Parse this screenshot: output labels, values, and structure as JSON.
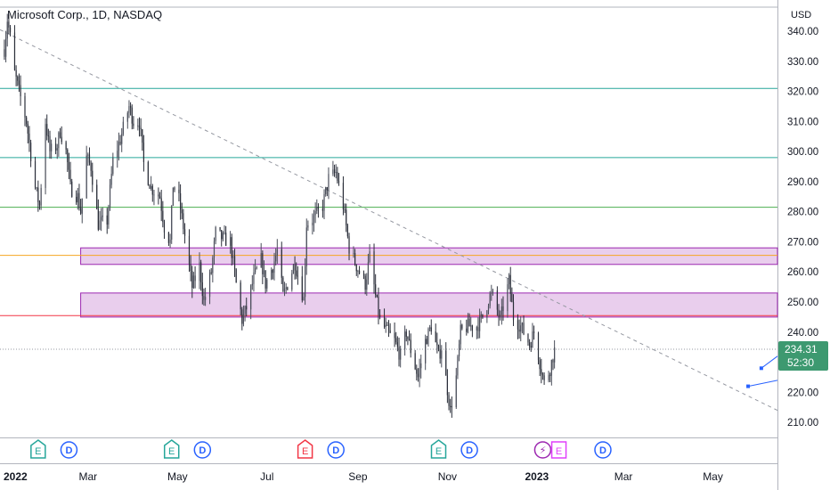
{
  "header": {
    "title": "Microsoft Corp., 1D, NASDAQ"
  },
  "colors": {
    "up": "#26a69a",
    "down": "#ef5350",
    "candle": "#4a4e5a",
    "teal_line": "#26a69a",
    "green_line": "#4caf50",
    "orange_line": "#f5a623",
    "red_line": "#f23645",
    "zone_fill": "#e1bee7",
    "zone_border": "#9c27b0",
    "trend": "#9598a1",
    "blue": "#2962ff",
    "price_badge": "#3d9970"
  },
  "chart_data": {
    "type": "candlestick",
    "title": "Microsoft Corp., 1D, NASDAQ",
    "currency": "USD",
    "ylim": [
      205,
      348
    ],
    "yticks": [
      "340.00",
      "330.00",
      "320.00",
      "310.00",
      "300.00",
      "290.00",
      "280.00",
      "270.00",
      "260.00",
      "250.00",
      "240.00",
      "230.00",
      "220.00",
      "210.00"
    ],
    "ytick_values": [
      340,
      330,
      320,
      310,
      300,
      290,
      280,
      270,
      260,
      250,
      240,
      230,
      220,
      210
    ],
    "xlabels": [
      "2022",
      "Mar",
      "May",
      "Jul",
      "Sep",
      "Nov",
      "2023",
      "Mar",
      "May"
    ],
    "xlabel_dates": [
      "2022-01-01",
      "2022-03-01",
      "2022-05-01",
      "2022-07-01",
      "2022-09-01",
      "2022-11-01",
      "2023-01-01",
      "2023-03-01",
      "2023-05-01"
    ],
    "xlim": [
      "2021-12-31",
      "2023-06-14"
    ],
    "current_price": "234.31",
    "countdown": "52:30",
    "horizontal_lines": [
      {
        "value": 321,
        "kind": "teal"
      },
      {
        "value": 298,
        "kind": "teal"
      },
      {
        "value": 281.5,
        "kind": "green"
      },
      {
        "value": 265.5,
        "kind": "orange"
      },
      {
        "value": 245.5,
        "kind": "red"
      }
    ],
    "zones": [
      {
        "from_date": "2022-02-24",
        "to_date": "2023-06-14",
        "top": 268,
        "bottom": 262.5
      },
      {
        "from_date": "2022-02-24",
        "to_date": "2023-06-14",
        "top": 253,
        "bottom": 245
      }
    ],
    "trendline": {
      "start_date": "2021-12-31",
      "start_value": 340.5,
      "end_date": "2023-06-14",
      "end_value": 214
    },
    "projection_segments": [
      {
        "from_date": "2023-05-25",
        "from_value": 222,
        "to_date": "2023-06-14",
        "to_value": 224
      },
      {
        "from_date": "2023-06-03",
        "from_value": 228,
        "to_date": "2023-06-14",
        "to_value": 232
      }
    ],
    "events": [
      {
        "date": "2022-01-26",
        "label": "E",
        "kind": "earnings-up"
      },
      {
        "date": "2022-02-16",
        "label": "D",
        "kind": "dividend"
      },
      {
        "date": "2022-04-27",
        "label": "E",
        "kind": "earnings-up"
      },
      {
        "date": "2022-05-18",
        "label": "D",
        "kind": "dividend"
      },
      {
        "date": "2022-07-27",
        "label": "E",
        "kind": "earnings-down"
      },
      {
        "date": "2022-08-17",
        "label": "D",
        "kind": "dividend"
      },
      {
        "date": "2022-10-26",
        "label": "E",
        "kind": "earnings-up"
      },
      {
        "date": "2022-11-16",
        "label": "D",
        "kind": "dividend"
      },
      {
        "date": "2023-01-05",
        "label": "⚡",
        "kind": "split"
      },
      {
        "date": "2023-01-16",
        "label": "E",
        "kind": "earnings-pending"
      },
      {
        "date": "2023-02-15",
        "label": "D",
        "kind": "dividend"
      }
    ],
    "price_path": [
      [
        "2022-01-03",
        334
      ],
      [
        "2022-01-05",
        344
      ],
      [
        "2022-01-07",
        338
      ],
      [
        "2022-01-10",
        326
      ],
      [
        "2022-01-13",
        320
      ],
      [
        "2022-01-18",
        310
      ],
      [
        "2022-01-21",
        299
      ],
      [
        "2022-01-24",
        288
      ],
      [
        "2022-01-27",
        282
      ],
      [
        "2022-01-31",
        310
      ],
      [
        "2022-02-03",
        300
      ],
      [
        "2022-02-08",
        302
      ],
      [
        "2022-02-10",
        307
      ],
      [
        "2022-02-14",
        300
      ],
      [
        "2022-02-17",
        288
      ],
      [
        "2022-02-22",
        285
      ],
      [
        "2022-02-24",
        280
      ],
      [
        "2022-02-28",
        298
      ],
      [
        "2022-03-03",
        295
      ],
      [
        "2022-03-08",
        276
      ],
      [
        "2022-03-14",
        277
      ],
      [
        "2022-03-18",
        297
      ],
      [
        "2022-03-23",
        304
      ],
      [
        "2022-03-29",
        315
      ],
      [
        "2022-04-01",
        310
      ],
      [
        "2022-04-05",
        310
      ],
      [
        "2022-04-08",
        296
      ],
      [
        "2022-04-13",
        288
      ],
      [
        "2022-04-19",
        285
      ],
      [
        "2022-04-22",
        275
      ],
      [
        "2022-04-26",
        270
      ],
      [
        "2022-04-28",
        289
      ],
      [
        "2022-05-02",
        284
      ],
      [
        "2022-05-06",
        272
      ],
      [
        "2022-05-11",
        255
      ],
      [
        "2022-05-16",
        262
      ],
      [
        "2022-05-19",
        250
      ],
      [
        "2022-05-24",
        260
      ],
      [
        "2022-05-27",
        273
      ],
      [
        "2022-06-01",
        271
      ],
      [
        "2022-06-06",
        270
      ],
      [
        "2022-06-10",
        256
      ],
      [
        "2022-06-14",
        244
      ],
      [
        "2022-06-17",
        248
      ],
      [
        "2022-06-22",
        258
      ],
      [
        "2022-06-27",
        264
      ],
      [
        "2022-06-30",
        256
      ],
      [
        "2022-07-05",
        262
      ],
      [
        "2022-07-08",
        267
      ],
      [
        "2022-07-12",
        252
      ],
      [
        "2022-07-15",
        256
      ],
      [
        "2022-07-20",
        263
      ],
      [
        "2022-07-26",
        251
      ],
      [
        "2022-07-28",
        276
      ],
      [
        "2022-08-02",
        278
      ],
      [
        "2022-08-08",
        282
      ],
      [
        "2022-08-12",
        291
      ],
      [
        "2022-08-17",
        293
      ],
      [
        "2022-08-22",
        282
      ],
      [
        "2022-08-26",
        268
      ],
      [
        "2022-08-31",
        262
      ],
      [
        "2022-09-06",
        256
      ],
      [
        "2022-09-09",
        265
      ],
      [
        "2022-09-13",
        252
      ],
      [
        "2022-09-16",
        244
      ],
      [
        "2022-09-21",
        240
      ],
      [
        "2022-09-26",
        237
      ],
      [
        "2022-09-30",
        232
      ],
      [
        "2022-10-04",
        240
      ],
      [
        "2022-10-07",
        234
      ],
      [
        "2022-10-12",
        225
      ],
      [
        "2022-10-17",
        237
      ],
      [
        "2022-10-21",
        242
      ],
      [
        "2022-10-26",
        232
      ],
      [
        "2022-10-28",
        235
      ],
      [
        "2022-11-03",
        214
      ],
      [
        "2022-11-07",
        225
      ],
      [
        "2022-11-10",
        240
      ],
      [
        "2022-11-15",
        242
      ],
      [
        "2022-11-21",
        242
      ],
      [
        "2022-11-25",
        245
      ],
      [
        "2022-11-30",
        252
      ],
      [
        "2022-12-02",
        252
      ],
      [
        "2022-12-07",
        244
      ],
      [
        "2022-12-13",
        257
      ],
      [
        "2022-12-16",
        245
      ],
      [
        "2022-12-21",
        242
      ],
      [
        "2022-12-27",
        236
      ],
      [
        "2022-12-30",
        240
      ],
      [
        "2023-01-03",
        230
      ],
      [
        "2023-01-06",
        223
      ],
      [
        "2023-01-10",
        228
      ],
      [
        "2023-01-13",
        234
      ]
    ]
  }
}
